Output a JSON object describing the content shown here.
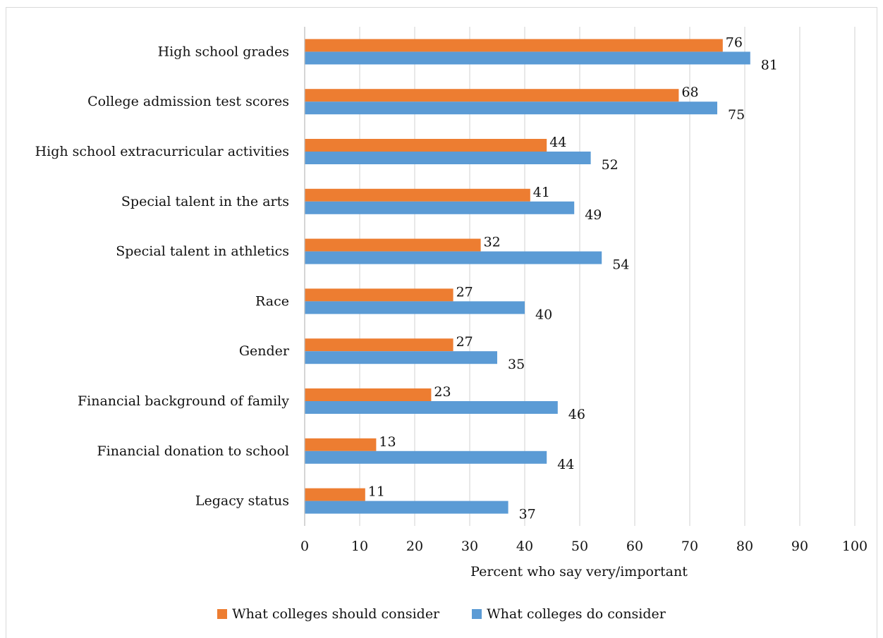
{
  "chart_data": {
    "type": "bar",
    "orientation": "horizontal",
    "title": "",
    "xlabel": "Percent who say very/important",
    "ylabel": "",
    "xlim": [
      0,
      100
    ],
    "x_ticks": [
      0,
      10,
      20,
      30,
      40,
      50,
      60,
      70,
      80,
      90,
      100
    ],
    "grid": "vertical",
    "legend_position": "bottom",
    "categories": [
      "High school grades",
      "College admission test scores",
      "High school extracurricular activities",
      "Special talent in the arts",
      "Special talent in athletics",
      "Race",
      "Gender",
      "Financial background of family",
      "Financial donation to school",
      "Legacy status"
    ],
    "series": [
      {
        "name": "What colleges should consider",
        "color": "#ed7d31",
        "values": [
          76,
          68,
          44,
          41,
          32,
          27,
          27,
          23,
          13,
          11
        ]
      },
      {
        "name": "What colleges do consider",
        "color": "#5b9bd5",
        "values": [
          81,
          75,
          52,
          49,
          54,
          40,
          35,
          46,
          44,
          37
        ]
      }
    ]
  }
}
